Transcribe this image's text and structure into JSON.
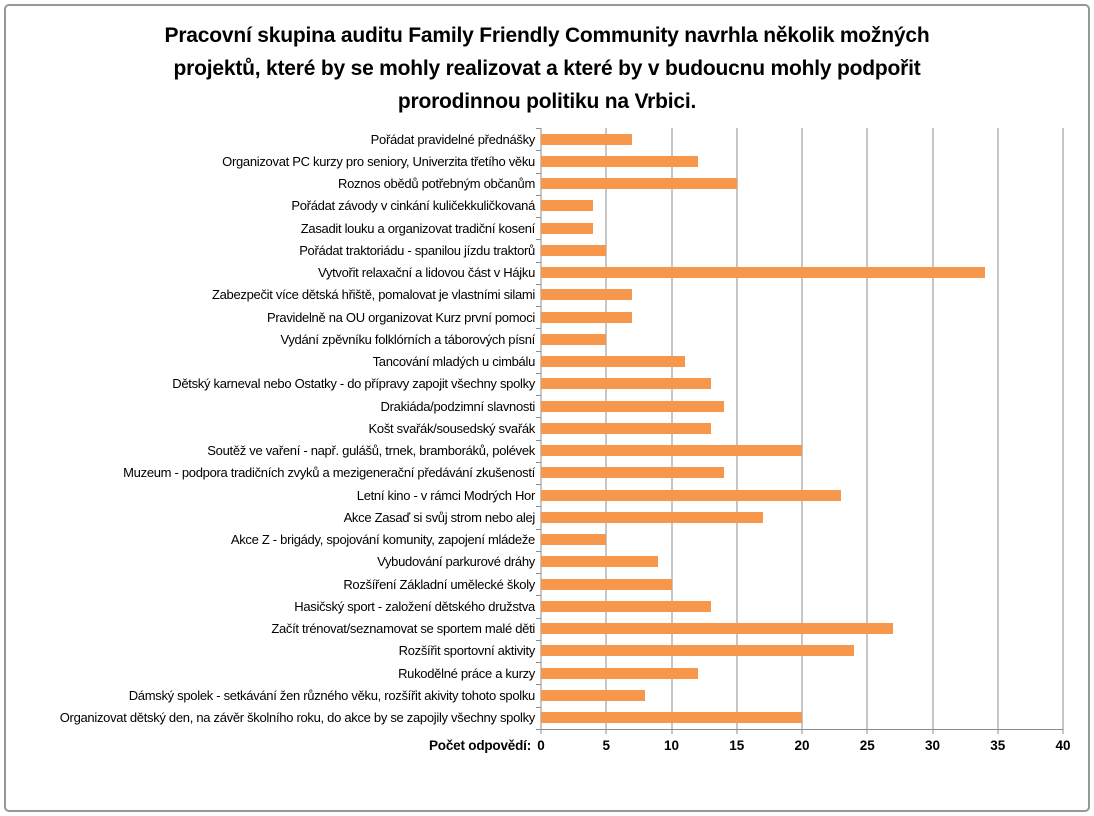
{
  "title": "Pracovní skupina auditu Family Friendly Community navrhla několik možných projektů, které by se mohly realizovat a které by v budoucnu mohly podpořit prorodinnou politiku na Vrbici.",
  "title_lines": [
    "Pracovní skupina auditu Family Friendly Community navrhla několik možných",
    "projektů, které by se mohly realizovat a které by v budoucnu mohly podpořit",
    "prorodinnou politiku na Vrbici."
  ],
  "chart_data": {
    "type": "bar",
    "orientation": "horizontal",
    "title": "Pracovní skupina auditu Family Friendly Community navrhla několik možných projektů, které by se mohly realizovat a které by v budoucnu mohly podpořit prorodinnou politiku na Vrbici.",
    "xlabel": "Počet odpovědí:",
    "ylabel": "",
    "xlim": [
      0,
      40
    ],
    "xticks": [
      0,
      5,
      10,
      15,
      20,
      25,
      30,
      35,
      40
    ],
    "grid": true,
    "legend": false,
    "bar_color": "#F7974C",
    "gridline_color": "#8c8c8c",
    "categories": [
      "Pořádat pravidelné přednášky",
      "Organizovat PC kurzy pro seniory, Univerzita třetího věku",
      "Roznos obědů potřebným občanům",
      "Pořádat závody v cinkání kuličekkuličkovaná",
      "Zasadit louku a organizovat tradiční kosení",
      "Pořádat traktoriádu - spanilou jízdu traktorů",
      "Vytvořit relaxační a lidovou část v Hájku",
      "Zabezpečit více dětská hřiště, pomalovat je vlastními silami",
      "Pravidelně na OU organizovat Kurz první pomoci",
      "Vydání zpěvníku folklórních a táborových písní",
      "Tancování mladých u cimbálu",
      "Dětský karneval nebo Ostatky - do přípravy zapojit všechny spolky",
      "Drakiáda/podzimní slavnosti",
      "Košt svařák/sousedský svařák",
      "Soutěž ve vaření - např. gulášů, trnek, bramboráků, polévek",
      "Muzeum - podpora tradičních zvyků a mezigenerační předávání zkušeností",
      "Letní kino - v rámci Modrých Hor",
      "Akce Zasaď si svůj strom nebo alej",
      "Akce Z - brigády, spojování komunity, zapojení mládeže",
      "Vybudování parkurové dráhy",
      "Rozšíření Základní umělecké školy",
      "Hasičský sport - založení dětského družstva",
      "Začít trénovat/seznamovat se sportem malé děti",
      "Rozšířit sportovní aktivity",
      "Rukodělné práce a kurzy",
      "Dámský spolek - setkávání žen různého věku, rozšířit akivity tohoto spolku",
      "Organizovat dětský den, na závěr školního roku, do akce by se zapojily všechny spolky"
    ],
    "values": [
      7,
      12,
      15,
      4,
      4,
      5,
      34,
      7,
      7,
      5,
      11,
      13,
      14,
      13,
      20,
      14,
      23,
      17,
      5,
      9,
      10,
      13,
      27,
      24,
      12,
      8,
      20
    ]
  }
}
